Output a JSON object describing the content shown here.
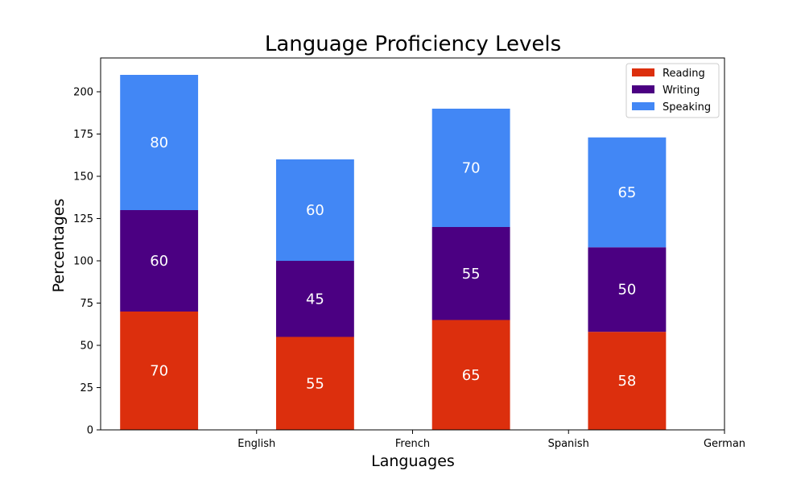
{
  "chart_data": {
    "type": "bar",
    "stacked": true,
    "title": "Language Proficiency Levels",
    "xlabel": "Languages",
    "ylabel": "Percentages",
    "categories": [
      "English",
      "French",
      "Spanish",
      "German"
    ],
    "series": [
      {
        "name": "Reading",
        "values": [
          70,
          55,
          65,
          58
        ],
        "color": "#dc2f0d"
      },
      {
        "name": "Writing",
        "values": [
          60,
          45,
          55,
          50
        ],
        "color": "#4b0082"
      },
      {
        "name": "Speaking",
        "values": [
          80,
          60,
          70,
          65
        ],
        "color": "#4287f5"
      }
    ],
    "ylim": [
      0,
      220
    ],
    "yticks": [
      0,
      25,
      50,
      75,
      100,
      125,
      150,
      175,
      200
    ],
    "legend_position": "top-right",
    "grid": false
  }
}
